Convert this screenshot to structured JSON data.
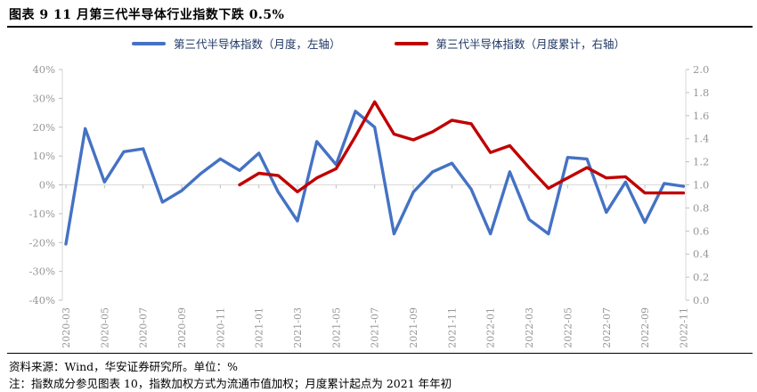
{
  "title": "图表 9 11 月第三代半导体行业指数下跌 0.5%",
  "legend": [
    {
      "label": "第三代半导体指数（月度，左轴）",
      "color": "#4472C4"
    },
    {
      "label": "第三代半导体指数（月度累计，右轴）",
      "color": "#C00000"
    }
  ],
  "footer": {
    "source": "资料来源：Wind，华安证券研究所。单位：%",
    "note": "注：指数成分参见图表 10，指数加权方式为流通市值加权；月度累计起点为 2021 年年初"
  },
  "colors": {
    "blue_series": "#4472C4",
    "red_series": "#C00000",
    "axis_line": "#d9d9d9",
    "tick_mark": "#bfbfbf",
    "tick_label": "#969696"
  },
  "chart_data": {
    "type": "line",
    "title": "图表 9 11 月第三代半导体行业指数下跌 0.5%",
    "x": [
      "2020-03",
      "2020-04",
      "2020-05",
      "2020-06",
      "2020-07",
      "2020-08",
      "2020-09",
      "2020-10",
      "2020-11",
      "2020-12",
      "2021-01",
      "2021-02",
      "2021-03",
      "2021-04",
      "2021-05",
      "2021-06",
      "2021-07",
      "2021-08",
      "2021-09",
      "2021-10",
      "2021-11",
      "2021-12",
      "2022-01",
      "2022-02",
      "2022-03",
      "2022-04",
      "2022-05",
      "2022-06",
      "2022-07",
      "2022-08",
      "2022-09",
      "2022-10",
      "2022-11"
    ],
    "x_tick_every": 2,
    "x_tick_labels": [
      "2020-03",
      "2020-05",
      "2020-07",
      "2020-09",
      "2020-11",
      "2021-01",
      "2021-03",
      "2021-05",
      "2021-07",
      "2021-09",
      "2021-11",
      "2022-01",
      "2022-03",
      "2022-05",
      "2022-07",
      "2022-09",
      "2022-11"
    ],
    "series": [
      {
        "name": "第三代半导体指数（月度，左轴）",
        "axis": "left",
        "color": "#4472C4",
        "values": [
          -20.5,
          19.5,
          1,
          11.5,
          12.5,
          -6,
          -2,
          4,
          9,
          5,
          11,
          -2.5,
          -12.5,
          15,
          7,
          25.5,
          20,
          -17,
          -2.5,
          4.5,
          7.5,
          -1.5,
          -17,
          4.5,
          -12,
          -17,
          9.5,
          9,
          -9.5,
          1,
          -13,
          0.5,
          -0.5
        ]
      },
      {
        "name": "第三代半导体指数（月度累计，右轴）",
        "axis": "right",
        "color": "#C00000",
        "values": [
          null,
          null,
          null,
          null,
          null,
          null,
          null,
          null,
          null,
          1.0,
          1.1,
          1.08,
          0.94,
          1.06,
          1.14,
          1.42,
          1.72,
          1.44,
          1.39,
          1.46,
          1.56,
          1.53,
          1.28,
          1.34,
          1.15,
          0.97,
          1.06,
          1.15,
          1.06,
          1.07,
          0.93,
          0.93,
          0.93
        ]
      }
    ],
    "left_axis": {
      "min": -40,
      "max": 40,
      "step": 10,
      "unit": "%",
      "labels": [
        "40%",
        "30%",
        "20%",
        "10%",
        "0%",
        "-10%",
        "-20%",
        "-30%",
        "-40%"
      ]
    },
    "right_axis": {
      "min": 0.0,
      "max": 2.0,
      "step": 0.2,
      "labels": [
        "2.0",
        "1.8",
        "1.6",
        "1.4",
        "1.2",
        "1.0",
        "0.8",
        "0.6",
        "0.4",
        "0.2",
        "0.0"
      ]
    },
    "grid": "zero-line-only",
    "legend_position": "top-center"
  }
}
